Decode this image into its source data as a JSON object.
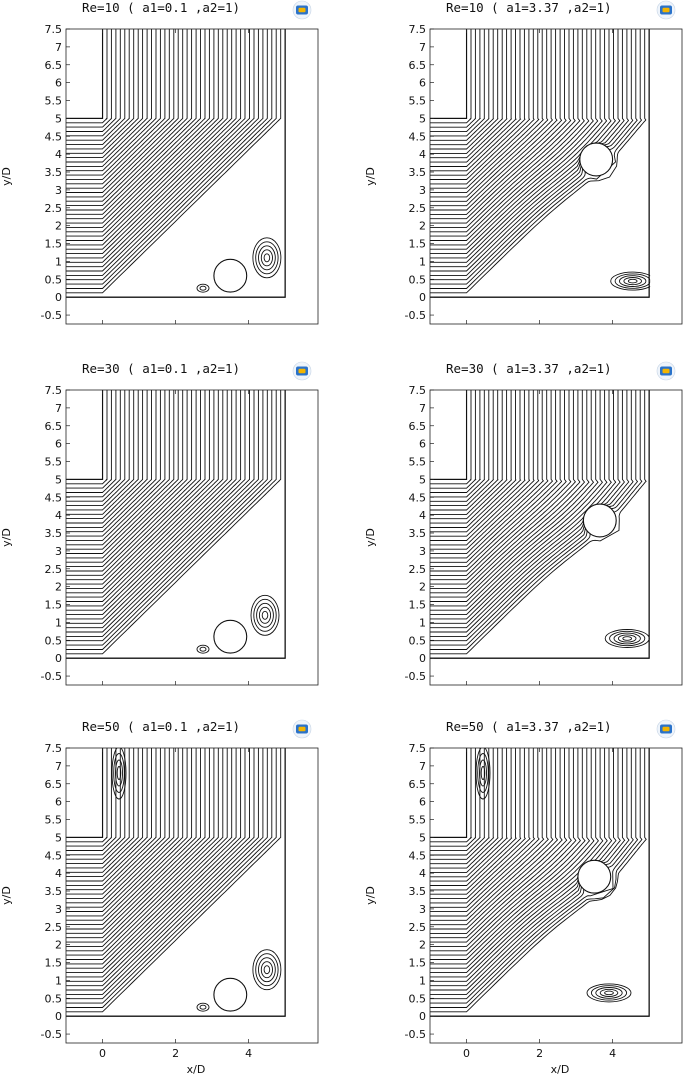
{
  "panels": [
    {
      "title": "Re=10   ( a1=0.1  ,a2=1)",
      "re": 10,
      "a1": 0.1,
      "cylinder": {
        "x": 3.5,
        "y": 0.6
      },
      "tilt": 0.0,
      "bottom_vortex": {
        "x": 4.5,
        "y": 1.1
      },
      "top_vortex": false
    },
    {
      "title": "Re=10   ( a1=3.37  ,a2=1)",
      "re": 10,
      "a1": 3.37,
      "cylinder": {
        "x": 3.55,
        "y": 3.85
      },
      "tilt": 0.8,
      "bottom_vortex": {
        "x": 4.55,
        "y": 0.45
      },
      "top_vortex": false
    },
    {
      "title": "Re=30   ( a1=0.1  ,a2=1)",
      "re": 30,
      "a1": 0.1,
      "cylinder": {
        "x": 3.5,
        "y": 0.6
      },
      "tilt": 0.0,
      "bottom_vortex": {
        "x": 4.45,
        "y": 1.2
      },
      "top_vortex": false
    },
    {
      "title": "Re=30   ( a1=3.37  ,a2=1)",
      "re": 30,
      "a1": 3.37,
      "cylinder": {
        "x": 3.65,
        "y": 3.85
      },
      "tilt": 0.9,
      "bottom_vortex": {
        "x": 4.4,
        "y": 0.55
      },
      "top_vortex": false
    },
    {
      "title": "Re=50   ( a1=0.1  ,a2=1)",
      "re": 50,
      "a1": 0.1,
      "cylinder": {
        "x": 3.5,
        "y": 0.6
      },
      "tilt": 0.0,
      "bottom_vortex": {
        "x": 4.5,
        "y": 1.3
      },
      "top_vortex": true
    },
    {
      "title": "Re=50   ( a1=3.37  ,a2=1)",
      "re": 50,
      "a1": 3.37,
      "cylinder": {
        "x": 3.5,
        "y": 3.9
      },
      "tilt": 1.0,
      "bottom_vortex": {
        "x": 3.9,
        "y": 0.65
      },
      "top_vortex": true
    }
  ],
  "axes": {
    "xlabel": "x/D",
    "ylabel": "y/D",
    "xlim": [
      -1,
      5.9
    ],
    "ylim": [
      -0.75,
      7.5
    ],
    "yticks": [
      "-0.5",
      "0",
      "0.5",
      "1",
      "1.5",
      "2",
      "2.5",
      "3",
      "3.5",
      "4",
      "4.5",
      "5",
      "5.5",
      "6",
      "6.5",
      "7",
      "7.5"
    ],
    "xticks": [
      "0",
      "2",
      "4"
    ]
  },
  "domain": {
    "cylinder_radius_D": 0.45,
    "walls": "L-shaped channel: inlet x=-1..0 for y>=5, outlet x=-1..5 for y<=0, right wall x=5"
  },
  "colors": {
    "line": "#111111",
    "background": "#ffffff",
    "logo_outer": "#2a72c9",
    "logo_inner": "#f2b400"
  },
  "icon": "comsol-logo-icon"
}
